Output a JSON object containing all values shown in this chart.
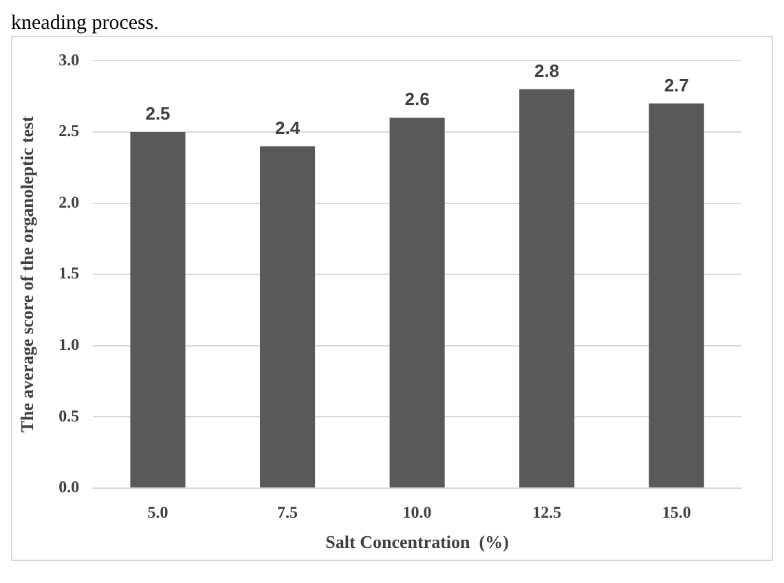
{
  "chart_data": {
    "type": "bar",
    "xlabel": "Salt Concentration  (%)",
    "ylabel": "The average score of the organoleptic test",
    "categories": [
      "5.0",
      "7.5",
      "10.0",
      "12.5",
      "15.0"
    ],
    "values": [
      2.5,
      2.4,
      2.6,
      2.8,
      2.7
    ],
    "color": "#595959",
    "ylim": [
      0,
      3
    ],
    "yticks": [
      {
        "value": 0,
        "label": "0.0"
      },
      {
        "value": 0.5,
        "label": "0.5"
      },
      {
        "value": 1,
        "label": "1.0"
      },
      {
        "value": 1.5,
        "label": "1.5"
      },
      {
        "value": 2,
        "label": "2.0"
      },
      {
        "value": 2.5,
        "label": "2.5"
      },
      {
        "value": 3,
        "label": "3.0"
      }
    ],
    "grid": "y",
    "legend": false,
    "data_labels": true,
    "annotations": [
      "kneading process."
    ]
  }
}
